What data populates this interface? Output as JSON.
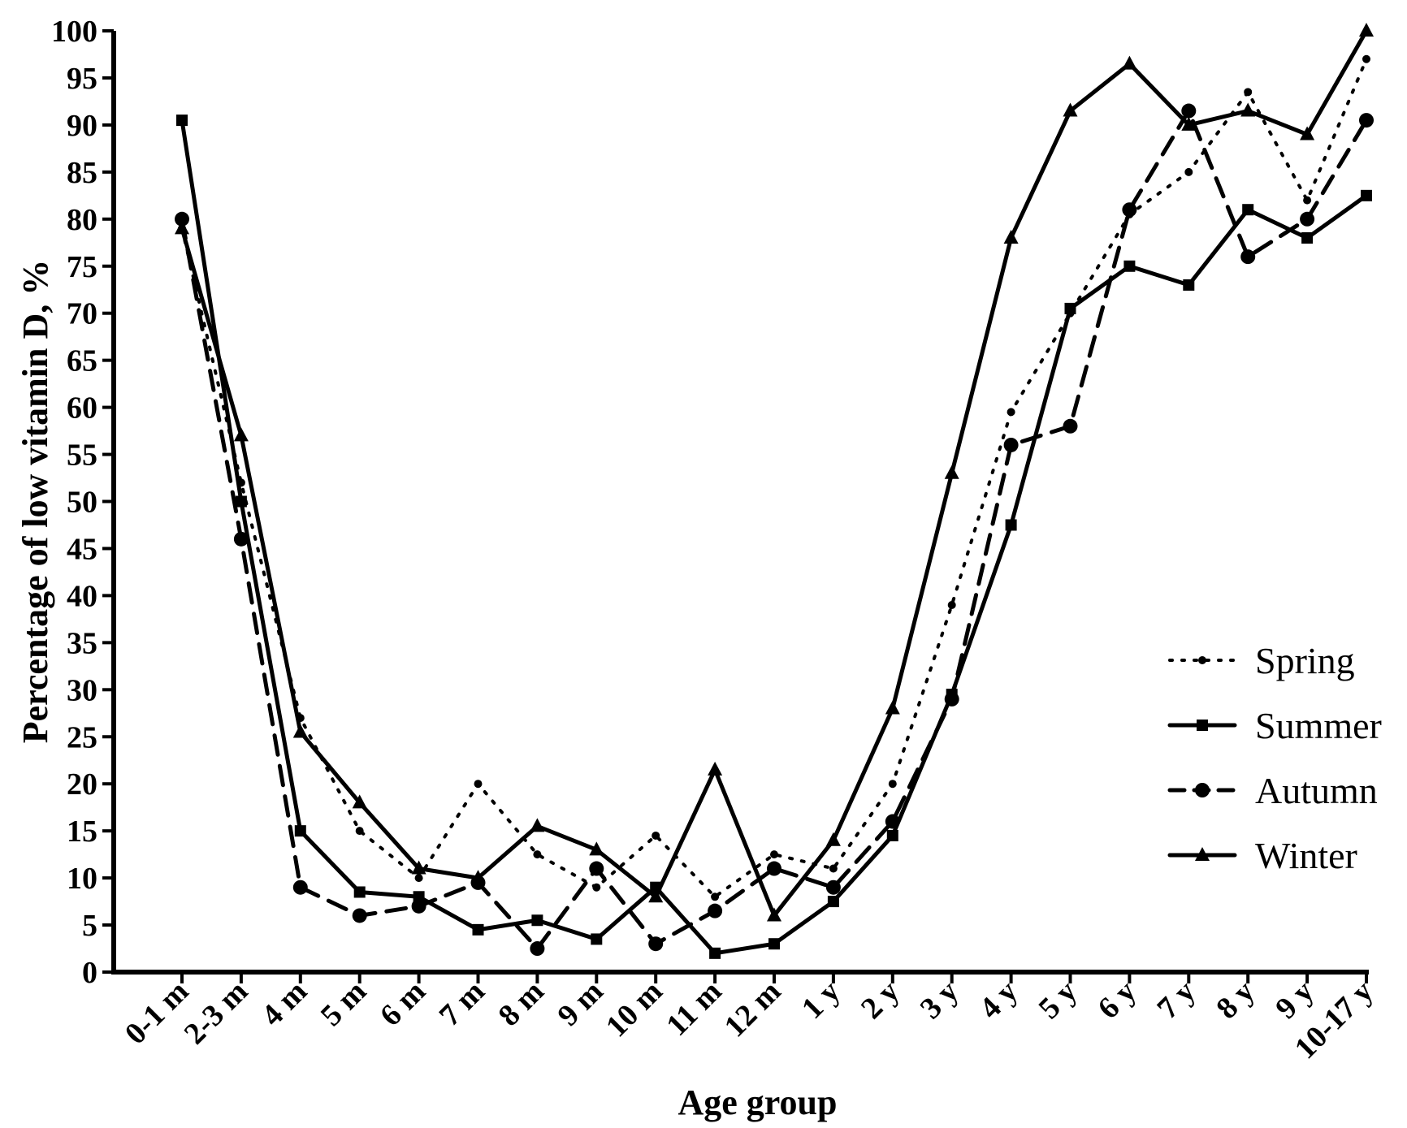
{
  "chart_data": {
    "type": "line",
    "title": "",
    "xlabel": "Age group",
    "ylabel": "Percentage of low vitamin D, %",
    "ylim": [
      0,
      100
    ],
    "yticks": [
      0,
      5,
      10,
      15,
      20,
      25,
      30,
      35,
      40,
      45,
      50,
      55,
      60,
      65,
      70,
      75,
      80,
      85,
      90,
      95,
      100
    ],
    "categories": [
      "0-1 m",
      "2-3 m",
      "4 m",
      "5 m",
      "6 m",
      "7 m",
      "8 m",
      "9 m",
      "10 m",
      "11 m",
      "12 m",
      "1 y",
      "2 y",
      "3 y",
      "4 y",
      "5 y",
      "6 y",
      "7 y",
      "8 y",
      "9 y",
      "10-17 y"
    ],
    "legend_position": "right",
    "series": [
      {
        "name": "Spring",
        "style": "dotted",
        "marker": "small-circle",
        "values": [
          79,
          52,
          27,
          15,
          10,
          20,
          12.5,
          9,
          14.5,
          8,
          12.5,
          11,
          20,
          39,
          59.5,
          70,
          80.5,
          85,
          93.5,
          82,
          97
        ]
      },
      {
        "name": "Summer",
        "style": "solid",
        "marker": "square",
        "values": [
          90.5,
          50,
          15,
          8.5,
          8,
          4.5,
          5.5,
          3.5,
          9,
          2,
          3,
          7.5,
          14.5,
          29.5,
          47.5,
          70.5,
          75,
          73,
          81,
          78,
          82.5
        ]
      },
      {
        "name": "Autumn",
        "style": "dashed",
        "marker": "circle",
        "values": [
          80,
          46,
          9,
          6,
          7,
          9.5,
          2.5,
          11,
          3,
          6.5,
          11,
          9,
          16,
          29,
          56,
          58,
          81,
          91.5,
          76,
          80,
          90.5
        ]
      },
      {
        "name": "Winter",
        "style": "solid",
        "marker": "triangle",
        "values": [
          79,
          57,
          25.5,
          18,
          11,
          10,
          15.5,
          13,
          8,
          21.5,
          6,
          14,
          28,
          53,
          78,
          91.5,
          96.5,
          90,
          91.5,
          89,
          100
        ]
      }
    ]
  }
}
